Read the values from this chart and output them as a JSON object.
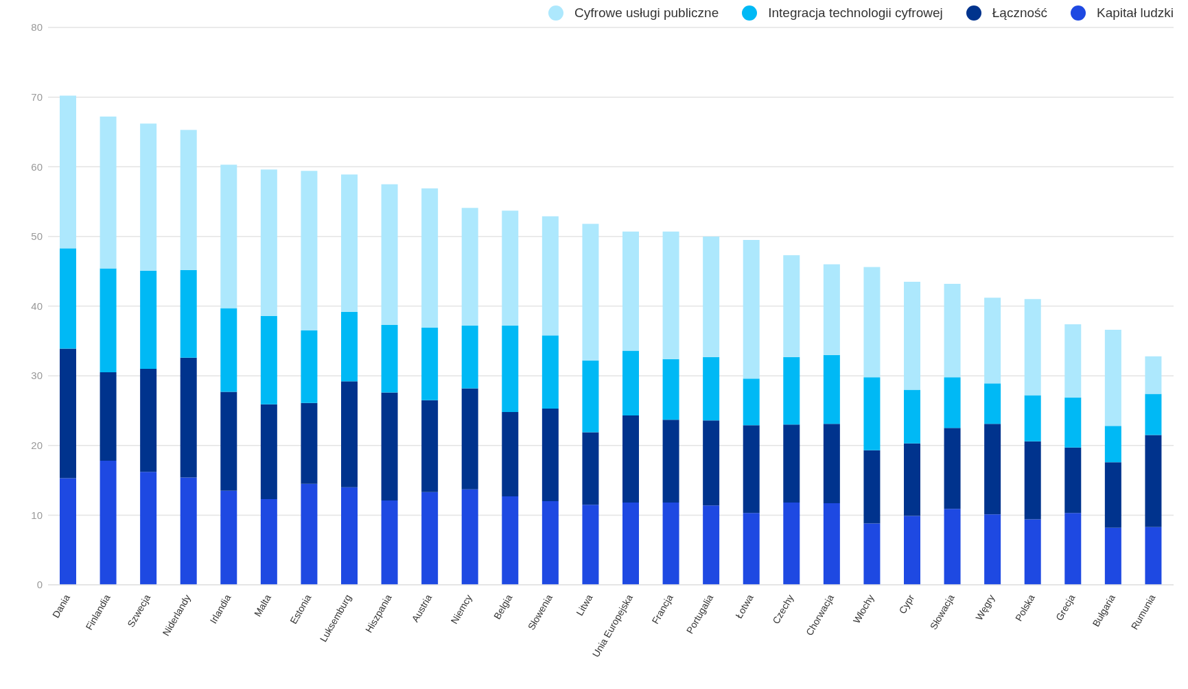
{
  "chart_data": {
    "type": "bar",
    "stacked": true,
    "categories": [
      "Dania",
      "Finlandia",
      "Szwecja",
      "Niderlandy",
      "Irlandia",
      "Malta",
      "Estonia",
      "Luksemburg",
      "Hiszpania",
      "Austria",
      "Niemcy",
      "Belgia",
      "Słowenia",
      "Litwa",
      "Unia Europejska",
      "Francja",
      "Portugalia",
      "Łotwa",
      "Czechy",
      "Chorwacja",
      "Włochy",
      "Cypr",
      "Słowacja",
      "Węgry",
      "Polska",
      "Grecja",
      "Bułgaria",
      "Rumunia"
    ],
    "series": [
      {
        "name": "Kapitał ludzki",
        "color": "#1e49e2",
        "values": [
          15.3,
          17.8,
          16.2,
          15.4,
          13.5,
          12.3,
          14.5,
          14.0,
          12.1,
          13.3,
          13.7,
          12.7,
          12.0,
          11.5,
          11.8,
          11.8,
          11.4,
          10.3,
          11.8,
          11.7,
          8.8,
          9.9,
          10.9,
          10.1,
          9.4,
          10.3,
          8.2,
          8.3
        ]
      },
      {
        "name": "Łączność",
        "color": "#00338d",
        "values": [
          18.6,
          12.7,
          14.8,
          17.2,
          14.2,
          13.6,
          11.6,
          15.2,
          15.5,
          13.2,
          14.5,
          12.1,
          13.3,
          10.4,
          12.5,
          11.9,
          12.2,
          12.6,
          11.2,
          11.4,
          10.5,
          10.4,
          11.6,
          13.0,
          11.2,
          9.4,
          9.4,
          13.2
        ]
      },
      {
        "name": "Integracja technologii cyfrowej",
        "color": "#00b9f5",
        "values": [
          14.4,
          14.9,
          14.1,
          12.6,
          12.0,
          12.7,
          10.4,
          10.0,
          9.7,
          10.4,
          9.0,
          12.4,
          10.5,
          10.3,
          9.3,
          8.7,
          9.1,
          6.7,
          9.7,
          9.9,
          10.5,
          7.7,
          7.3,
          5.8,
          6.6,
          7.2,
          5.2,
          5.9
        ]
      },
      {
        "name": "Cyfrowe usługi publiczne",
        "color": "#ade8fd",
        "values": [
          21.9,
          21.8,
          21.1,
          20.1,
          20.6,
          21.0,
          22.9,
          19.7,
          20.2,
          20.0,
          16.9,
          16.5,
          17.1,
          19.6,
          17.1,
          18.3,
          17.3,
          19.9,
          14.6,
          13.0,
          15.8,
          15.5,
          13.4,
          12.3,
          13.8,
          10.5,
          13.8,
          5.4
        ]
      }
    ],
    "ylim": [
      0,
      80
    ],
    "yticks": [
      0,
      10,
      20,
      30,
      40,
      50,
      60,
      70,
      80
    ],
    "grid": "y",
    "legend": "top right"
  }
}
